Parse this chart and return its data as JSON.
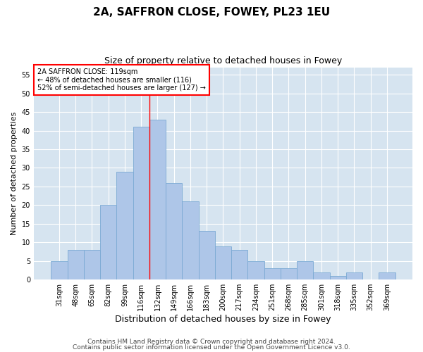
{
  "title1": "2A, SAFFRON CLOSE, FOWEY, PL23 1EU",
  "title2": "Size of property relative to detached houses in Fowey",
  "xlabel": "Distribution of detached houses by size in Fowey",
  "ylabel": "Number of detached properties",
  "bar_labels": [
    "31sqm",
    "48sqm",
    "65sqm",
    "82sqm",
    "99sqm",
    "116sqm",
    "132sqm",
    "149sqm",
    "166sqm",
    "183sqm",
    "200sqm",
    "217sqm",
    "234sqm",
    "251sqm",
    "268sqm",
    "285sqm",
    "301sqm",
    "318sqm",
    "335sqm",
    "352sqm",
    "369sqm"
  ],
  "bar_values": [
    5,
    8,
    8,
    20,
    29,
    41,
    43,
    26,
    21,
    13,
    9,
    8,
    5,
    3,
    3,
    5,
    2,
    1,
    2,
    0,
    2
  ],
  "bar_color": "#aec6e8",
  "bar_edge_color": "#7baad4",
  "vline_bin_index": 5,
  "annotation_text": "2A SAFFRON CLOSE: 119sqm\n← 48% of detached houses are smaller (116)\n52% of semi-detached houses are larger (127) →",
  "annotation_box_color": "white",
  "annotation_box_edge": "red",
  "ylim": [
    0,
    57
  ],
  "yticks": [
    0,
    5,
    10,
    15,
    20,
    25,
    30,
    35,
    40,
    45,
    50,
    55
  ],
  "grid_color": "white",
  "background_color": "#d6e4f0",
  "footer1": "Contains HM Land Registry data © Crown copyright and database right 2024.",
  "footer2": "Contains public sector information licensed under the Open Government Licence v3.0.",
  "title1_fontsize": 11,
  "title2_fontsize": 9,
  "xlabel_fontsize": 9,
  "ylabel_fontsize": 8,
  "tick_fontsize": 7,
  "footer_fontsize": 6.5
}
